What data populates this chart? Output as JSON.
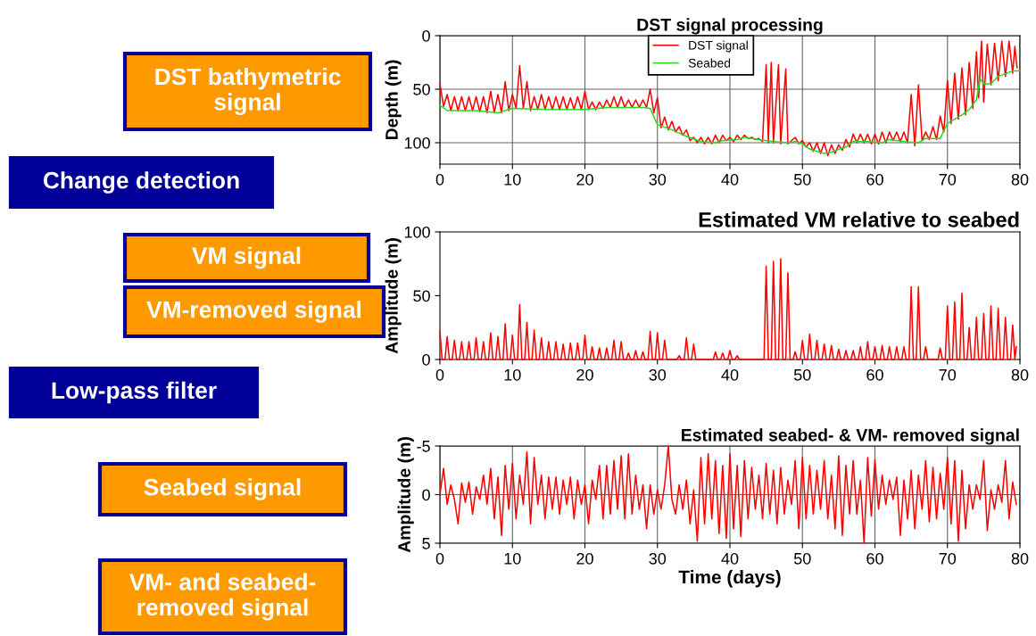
{
  "chart_data": [
    {
      "type": "other",
      "annotations": [
        "DST bathymetric\nsignal",
        "Change detection",
        "VM signal",
        "VM-removed signal",
        "Low-pass filter",
        "Seabed signal",
        "VM- and seabed-\nremoved signal"
      ],
      "colors": [
        "#ff9900",
        "#000099",
        "#ff9900",
        "#ff9900",
        "#000099",
        "#ff9900",
        "#ff9900"
      ]
    },
    {
      "type": "line",
      "title": "DST signal processing",
      "ylabel": "Depth (m)",
      "xlim": [
        0,
        80
      ],
      "xticks": [
        0,
        10,
        20,
        30,
        40,
        50,
        60,
        70,
        80
      ],
      "ylim": [
        120,
        0
      ],
      "yticks": [
        0,
        50,
        100
      ],
      "grid": true,
      "legend": "top",
      "series": [
        {
          "name": "DST signal",
          "color": "#ff0000",
          "x": [
            0,
            0.5,
            1,
            1.5,
            2,
            2.5,
            3,
            3.5,
            4,
            4.5,
            5,
            5.5,
            6,
            6.5,
            7,
            7.5,
            8,
            8.5,
            9,
            9.5,
            10,
            10.5,
            11,
            11.5,
            12,
            12.5,
            13,
            13.5,
            14,
            14.5,
            15,
            15.5,
            16,
            16.5,
            17,
            17.5,
            18,
            18.5,
            19,
            19.5,
            20,
            20.5,
            21,
            21.5,
            22,
            22.5,
            23,
            23.5,
            24,
            24.5,
            25,
            25.5,
            26,
            26.5,
            27,
            27.5,
            28,
            28.5,
            29,
            29.5,
            30,
            30.5,
            31,
            31.5,
            32,
            32.5,
            33,
            33.5,
            34,
            34.5,
            35,
            35.5,
            36,
            36.5,
            37,
            37.5,
            38,
            38.5,
            39,
            39.5,
            40,
            40.5,
            41,
            41.5,
            42,
            42.5,
            43,
            43.5,
            44,
            44.5,
            45,
            45.3,
            45.7,
            46,
            46.7,
            47,
            47.7,
            48,
            49,
            49.5,
            50,
            50.5,
            51,
            51.5,
            52,
            52.5,
            53,
            53.5,
            54,
            54.5,
            55,
            55.5,
            56,
            56.5,
            57,
            57.5,
            58,
            58.5,
            59,
            59.5,
            60,
            60.5,
            61,
            61.5,
            62,
            62.5,
            63,
            63.5,
            64,
            64.5,
            65,
            65.5,
            66,
            66.5,
            67,
            67.5,
            68,
            68.5,
            69,
            69.5,
            70,
            70.5,
            71,
            71.5,
            72,
            72.5,
            73,
            73.5,
            74,
            74.3,
            74.7,
            75,
            75.5,
            76,
            76.5,
            77,
            77.5,
            78,
            78.5,
            79,
            79.3,
            79.6
          ],
          "values": [
            45,
            66,
            55,
            70,
            57,
            70,
            57,
            70,
            57,
            70,
            57,
            71,
            57,
            72,
            52,
            72,
            55,
            72,
            43,
            70,
            55,
            68,
            28,
            68,
            43,
            70,
            57,
            69,
            55,
            69,
            57,
            69,
            57,
            69,
            57,
            69,
            58,
            69,
            57,
            69,
            52,
            69,
            62,
            69,
            62,
            68,
            60,
            67,
            57,
            67,
            57,
            67,
            60,
            67,
            60,
            67,
            60,
            67,
            50,
            72,
            58,
            86,
            76,
            88,
            80,
            90,
            85,
            93,
            88,
            98,
            95,
            100,
            95,
            101,
            95,
            101,
            93,
            100,
            93,
            98,
            95,
            99,
            93,
            97,
            93,
            96,
            95,
            97,
            96,
            99,
            27,
            100,
            25,
            100,
            27,
            101,
            31,
            101,
            95,
            101,
            98,
            104,
            100,
            108,
            100,
            110,
            100,
            112,
            102,
            110,
            102,
            107,
            97,
            104,
            92,
            100,
            92,
            100,
            92,
            101,
            92,
            101,
            90,
            100,
            90,
            98,
            90,
            99,
            90,
            100,
            55,
            103,
            46,
            98,
            90,
            97,
            85,
            97,
            75,
            90,
            42,
            82,
            35,
            78,
            30,
            74,
            25,
            68,
            15,
            58,
            5,
            62,
            8,
            46,
            7,
            42,
            5,
            38,
            5,
            35,
            10,
            30
          ]
        },
        {
          "name": "Seabed",
          "color": "#22dd22",
          "x": [
            0,
            1,
            5,
            8,
            9,
            10,
            15,
            20,
            23,
            28,
            29,
            30,
            32,
            34,
            36,
            38,
            39,
            41,
            42,
            44,
            46,
            48,
            49,
            50,
            51,
            53,
            54,
            55,
            56,
            57,
            59,
            61,
            62,
            64,
            66,
            67,
            69,
            70,
            72,
            73,
            74,
            74.5,
            75,
            76,
            77,
            79,
            80
          ],
          "values": [
            65,
            70,
            70,
            72,
            70,
            68,
            69,
            69,
            67,
            67,
            68,
            83,
            88,
            94,
            99,
            100,
            98,
            97,
            95,
            97,
            99,
            100,
            99,
            101,
            106,
            110,
            109,
            106,
            104,
            99,
            99,
            100,
            97,
            99,
            100,
            96,
            96,
            82,
            74,
            69,
            60,
            40,
            45,
            45,
            38,
            33,
            33
          ]
        }
      ]
    },
    {
      "type": "line",
      "title": "Estimated VM relative to seabed",
      "ylabel": "Amplitude (m)",
      "xlim": [
        0,
        80
      ],
      "xticks": [
        0,
        10,
        20,
        30,
        40,
        50,
        60,
        70,
        80
      ],
      "ylim": [
        0,
        100
      ],
      "yticks": [
        0,
        50,
        100
      ],
      "series": [
        {
          "color": "#ff0000",
          "x": [
            0,
            0.3,
            0.7,
            1,
            1.3,
            1.7,
            2,
            2.3,
            2.7,
            3,
            3.3,
            3.7,
            4,
            4.3,
            4.7,
            5,
            5.3,
            5.7,
            6,
            6.3,
            6.7,
            7,
            7.3,
            7.7,
            8,
            8.3,
            8.7,
            9,
            9.3,
            9.7,
            10,
            10.3,
            10.7,
            11,
            11.3,
            11.7,
            12,
            12.3,
            12.7,
            13,
            13.3,
            13.7,
            14,
            14.3,
            14.7,
            15,
            15.3,
            15.7,
            16,
            16.3,
            16.7,
            17,
            17.3,
            17.7,
            18,
            18.3,
            18.7,
            19,
            19.3,
            19.7,
            20,
            20.3,
            20.7,
            21,
            21.3,
            21.7,
            22,
            22.3,
            22.7,
            23,
            23.3,
            23.7,
            24,
            24.3,
            24.7,
            25,
            25.3,
            25.7,
            26,
            26.3,
            26.7,
            27,
            27.3,
            27.7,
            28,
            28.3,
            28.7,
            29,
            29.3,
            29.7,
            30,
            30.3,
            30.7,
            31,
            31.3,
            32.7,
            33,
            33.3,
            33.7,
            34,
            34.3,
            34.7,
            35,
            35.3,
            37.7,
            38,
            38.3,
            38.7,
            39,
            39.3,
            39.7,
            40,
            40.3,
            40.7,
            41,
            41.3,
            44.7,
            45,
            45.3,
            45.7,
            46,
            46.3,
            46.7,
            47,
            47.3,
            47.7,
            48,
            48.3,
            48.7,
            49,
            49.3,
            49.7,
            50,
            50.3,
            50.7,
            51,
            51.3,
            51.7,
            52,
            52.3,
            52.7,
            53,
            53.3,
            53.7,
            54,
            54.3,
            54.7,
            55,
            55.3,
            55.7,
            56,
            56.3,
            56.7,
            57,
            57.3,
            57.7,
            58,
            58.3,
            58.7,
            59,
            59.3,
            59.7,
            60,
            60.3,
            60.7,
            61,
            61.3,
            61.7,
            62,
            62.3,
            62.7,
            63,
            63.3,
            63.7,
            64,
            64.3,
            64.7,
            65,
            65.3,
            65.7,
            66,
            66.3,
            66.7,
            67,
            67.3,
            68.7,
            69,
            69.3,
            69.7,
            70,
            70.3,
            70.7,
            71,
            71.3,
            71.7,
            72,
            72.3,
            72.7,
            73,
            73.3,
            73.7,
            74,
            74.3,
            74.7,
            75,
            75.3,
            75.7,
            76,
            76.3,
            76.7,
            77,
            77.3,
            77.7,
            78,
            78.3,
            78.7,
            79,
            79.3,
            79.5
          ],
          "values": [
            22,
            0,
            0,
            18,
            0,
            0,
            15,
            0,
            0,
            14,
            0,
            0,
            14,
            0,
            0,
            17,
            0,
            0,
            14,
            0,
            0,
            21,
            0,
            0,
            18,
            0,
            0,
            28,
            0,
            0,
            19,
            0,
            0,
            43,
            0,
            0,
            29,
            0,
            0,
            23,
            0,
            0,
            17,
            0,
            0,
            14,
            0,
            0,
            14,
            0,
            0,
            12,
            0,
            0,
            13,
            0,
            0,
            13,
            0,
            0,
            19,
            0,
            0,
            10,
            0,
            0,
            9,
            0,
            0,
            9,
            0,
            0,
            15,
            0,
            0,
            14,
            0,
            0,
            5,
            0,
            0,
            7,
            0,
            0,
            6,
            0,
            0,
            22,
            0,
            0,
            21,
            0,
            0,
            15,
            0,
            0,
            3,
            0,
            0,
            17,
            0,
            0,
            12,
            0,
            0,
            6,
            0,
            0,
            5,
            0,
            0,
            7,
            0,
            0,
            3,
            0,
            0,
            73,
            0,
            0,
            77,
            0,
            0,
            79,
            0,
            0,
            68,
            0,
            0,
            6,
            0,
            0,
            15,
            0,
            0,
            20,
            0,
            0,
            15,
            0,
            0,
            12,
            0,
            0,
            11,
            0,
            0,
            8,
            0,
            0,
            7,
            0,
            0,
            7,
            0,
            0,
            10,
            0,
            0,
            14,
            0,
            0,
            10,
            0,
            0,
            11,
            0,
            0,
            10,
            0,
            0,
            10,
            0,
            0,
            10,
            0,
            0,
            57,
            0,
            0,
            57,
            0,
            0,
            10,
            0,
            0,
            9,
            0,
            0,
            42,
            0,
            0,
            45,
            0,
            0,
            52,
            0,
            0,
            25,
            0,
            0,
            33,
            0,
            0,
            36,
            0,
            0,
            42,
            0,
            0,
            40,
            0,
            0,
            33,
            0,
            0,
            27,
            0,
            10
          ]
        }
      ]
    },
    {
      "type": "line",
      "title": "Estimated seabed- & VM- removed signal",
      "xlabel": "Time (days)",
      "ylabel": "Amplitude (m)",
      "xlim": [
        0,
        80
      ],
      "xticks": [
        0,
        10,
        20,
        30,
        40,
        50,
        60,
        70,
        80
      ],
      "ylim": [
        5,
        -5
      ],
      "yticks": [
        {
          "value": -5,
          "label": "-5"
        },
        0,
        5
      ],
      "grid": true,
      "series": [
        {
          "color": "#ff0000",
          "x": [
            0,
            0.5,
            1,
            1.5,
            2,
            2.5,
            3,
            3.5,
            4,
            4.5,
            5,
            5.5,
            6,
            6.5,
            7,
            7.5,
            8,
            8.5,
            9,
            9.5,
            10,
            10.5,
            11,
            11.5,
            12,
            12.5,
            13,
            13.5,
            14,
            14.5,
            15,
            15.5,
            16,
            16.5,
            17,
            17.5,
            18,
            18.5,
            19,
            19.5,
            20,
            20.5,
            21,
            21.5,
            22,
            22.5,
            23,
            23.5,
            24,
            24.5,
            25,
            25.5,
            26,
            26.5,
            27,
            27.5,
            28,
            28.5,
            29,
            29.5,
            30,
            30.5,
            31,
            31.5,
            32,
            32.5,
            33,
            33.5,
            34,
            34.5,
            35,
            35.5,
            36,
            36.5,
            37,
            37.5,
            38,
            38.5,
            39,
            39.5,
            40,
            40.5,
            41,
            41.5,
            42,
            42.5,
            43,
            43.5,
            44,
            44.5,
            45,
            45.5,
            46,
            46.5,
            47,
            47.5,
            48,
            48.5,
            49,
            49.5,
            50,
            50.5,
            51,
            51.5,
            52,
            52.5,
            53,
            53.5,
            54,
            54.5,
            55,
            55.5,
            56,
            56.5,
            57,
            57.5,
            58,
            58.5,
            59,
            59.5,
            60,
            60.5,
            61,
            61.5,
            62,
            62.5,
            63,
            63.5,
            64,
            64.5,
            65,
            65.5,
            66,
            66.5,
            67,
            67.5,
            68,
            68.5,
            69,
            69.5,
            70,
            70.5,
            71,
            71.5,
            72,
            72.5,
            73,
            73.5,
            74,
            74.5,
            75,
            75.5,
            76,
            76.5,
            77,
            77.5,
            78,
            78.5,
            79,
            79.5
          ],
          "values": [
            0,
            -2.7,
            1,
            -1,
            0.5,
            3,
            -1.2,
            0.8,
            -1.3,
            2,
            -0.8,
            0.5,
            -2,
            1,
            -2.7,
            2.5,
            -1.8,
            4.2,
            -3,
            1.5,
            -3.2,
            2.5,
            -2,
            1,
            -4.4,
            3,
            -3.8,
            1,
            -2,
            2.5,
            -1.8,
            1.5,
            -1.8,
            2,
            -1.5,
            1,
            -1.8,
            2.5,
            -1.5,
            1,
            -1,
            3,
            -1.5,
            0.5,
            -3,
            2.5,
            -3,
            2,
            -3.5,
            1.5,
            -4,
            2.5,
            -4.2,
            2,
            -2,
            1.5,
            -1,
            3.5,
            -1,
            2,
            -0.5,
            1.5,
            -1,
            -5,
            0.5,
            2,
            -1,
            1.5,
            -1.5,
            3,
            -0.5,
            4.8,
            -3.8,
            3,
            -4.2,
            2.5,
            -3.5,
            4,
            -3,
            4.5,
            -4.2,
            3.5,
            -3,
            4.3,
            -3.5,
            2.5,
            -2.8,
            1.5,
            -2,
            2.5,
            -3.2,
            2,
            -2.5,
            3,
            -2.8,
            2,
            -1.5,
            1,
            -3.5,
            3.5,
            -3.8,
            2.5,
            -3,
            2,
            -2.5,
            1.5,
            -3.5,
            2.5,
            -2,
            3.5,
            -4,
            4.2,
            -3,
            2,
            -3.5,
            2,
            -1.5,
            5,
            -3.8,
            2.2,
            -3.6,
            1.5,
            -2,
            1,
            -1.5,
            0.5,
            -1.8,
            4.2,
            -1.5,
            2.5,
            -2.5,
            3.5,
            -2,
            1.5,
            -3.5,
            2.8,
            -2.8,
            2.5,
            -2.2,
            1.5,
            -3.8,
            3,
            -3.5,
            4.8,
            -2.5,
            3.5,
            -1,
            1.5,
            -1,
            0.5,
            -3.5,
            3.7,
            -0.5,
            1.5,
            -1,
            0.8,
            -3.5,
            2.5,
            -1.3,
            1
          ]
        }
      ]
    }
  ]
}
